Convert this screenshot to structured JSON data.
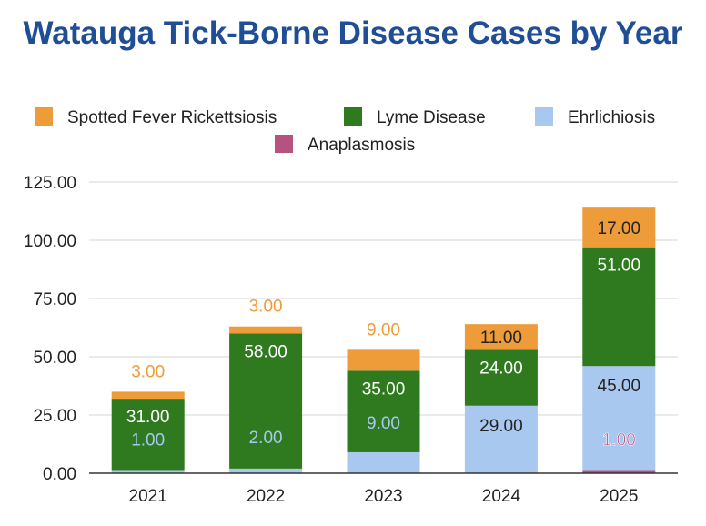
{
  "chart_data": {
    "type": "bar",
    "stacked": true,
    "title": "Watauga Tick-Borne Disease Cases by Year",
    "xlabel": "",
    "ylabel": "",
    "categories": [
      "2021",
      "2022",
      "2023",
      "2024",
      "2025"
    ],
    "ylim": [
      0,
      125
    ],
    "yticks": [
      "0.00",
      "25.00",
      "50.00",
      "75.00",
      "100.00",
      "125.00"
    ],
    "grid": true,
    "legend_position": "top",
    "series": [
      {
        "name": "Anaplasmosis",
        "color": "#b5527e",
        "values": [
          0,
          0,
          0,
          0,
          1
        ],
        "labels": [
          "",
          "",
          "",
          "",
          "1.00"
        ],
        "label_color": "#b5527e"
      },
      {
        "name": "Ehrlichiosis",
        "color": "#a9c8f0",
        "values": [
          1,
          2,
          9,
          29,
          45
        ],
        "labels": [
          "1.00",
          "2.00",
          "9.00",
          "29.00",
          "45.00"
        ],
        "label_color": "#a9c8f0"
      },
      {
        "name": "Lyme Disease",
        "color": "#2f7a1f",
        "values": [
          31,
          58,
          35,
          24,
          51
        ],
        "labels": [
          "31.00",
          "58.00",
          "35.00",
          "24.00",
          "51.00"
        ],
        "label_color": "#ffffff"
      },
      {
        "name": "Spotted Fever Rickettsiosis",
        "color": "#ee9b3a",
        "values": [
          3,
          3,
          9,
          11,
          17
        ],
        "labels": [
          "3.00",
          "3.00",
          "9.00",
          "11.00",
          "17.00"
        ],
        "label_color": "#ee9b3a"
      }
    ],
    "legend_order": [
      "Spotted Fever Rickettsiosis",
      "Lyme Disease",
      "Ehrlichiosis",
      "Anaplasmosis"
    ]
  }
}
